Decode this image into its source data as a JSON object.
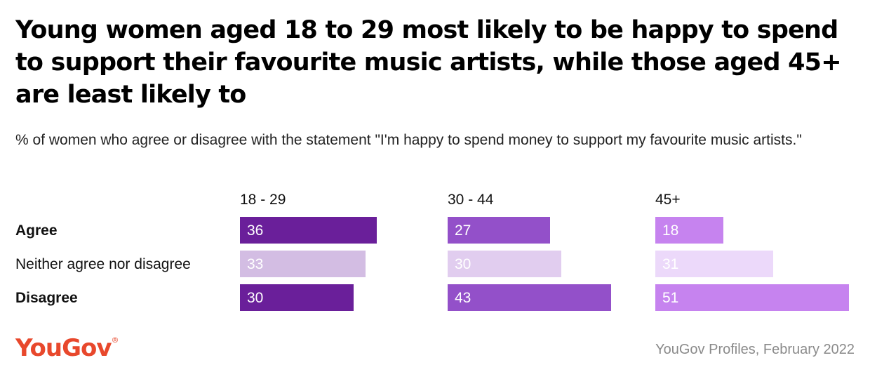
{
  "title": "Young women aged 18 to 29 most likely to be happy to spend to support their favourite music artists, while those aged 45+ are least likely to",
  "subtitle": "% of women who agree or disagree with the statement \"I'm happy to spend money to support my favourite music artists.\"",
  "brand": "YouGov",
  "brand_mark": "®",
  "source": "YouGov Profiles, February 2022",
  "colors": {
    "brand": "#e8482c",
    "panel_strong": [
      "#6a1f9a",
      "#9350c9",
      "#c683ef"
    ],
    "panel_light": [
      "#d3bde3",
      "#e1cdef",
      "#ecd9fa"
    ]
  },
  "chart_data": {
    "type": "bar",
    "orientation": "horizontal",
    "categories": [
      "Agree",
      "Neither agree nor disagree",
      "Disagree"
    ],
    "panels": [
      {
        "name": "18 - 29",
        "values": [
          36,
          33,
          30
        ]
      },
      {
        "name": "30 - 44",
        "values": [
          27,
          30,
          43
        ]
      },
      {
        "name": "45+",
        "values": [
          18,
          31,
          51
        ]
      }
    ],
    "bold_categories": [
      "Agree",
      "Disagree"
    ],
    "xlim": [
      0,
      51
    ],
    "grid": false,
    "legend": "none"
  }
}
